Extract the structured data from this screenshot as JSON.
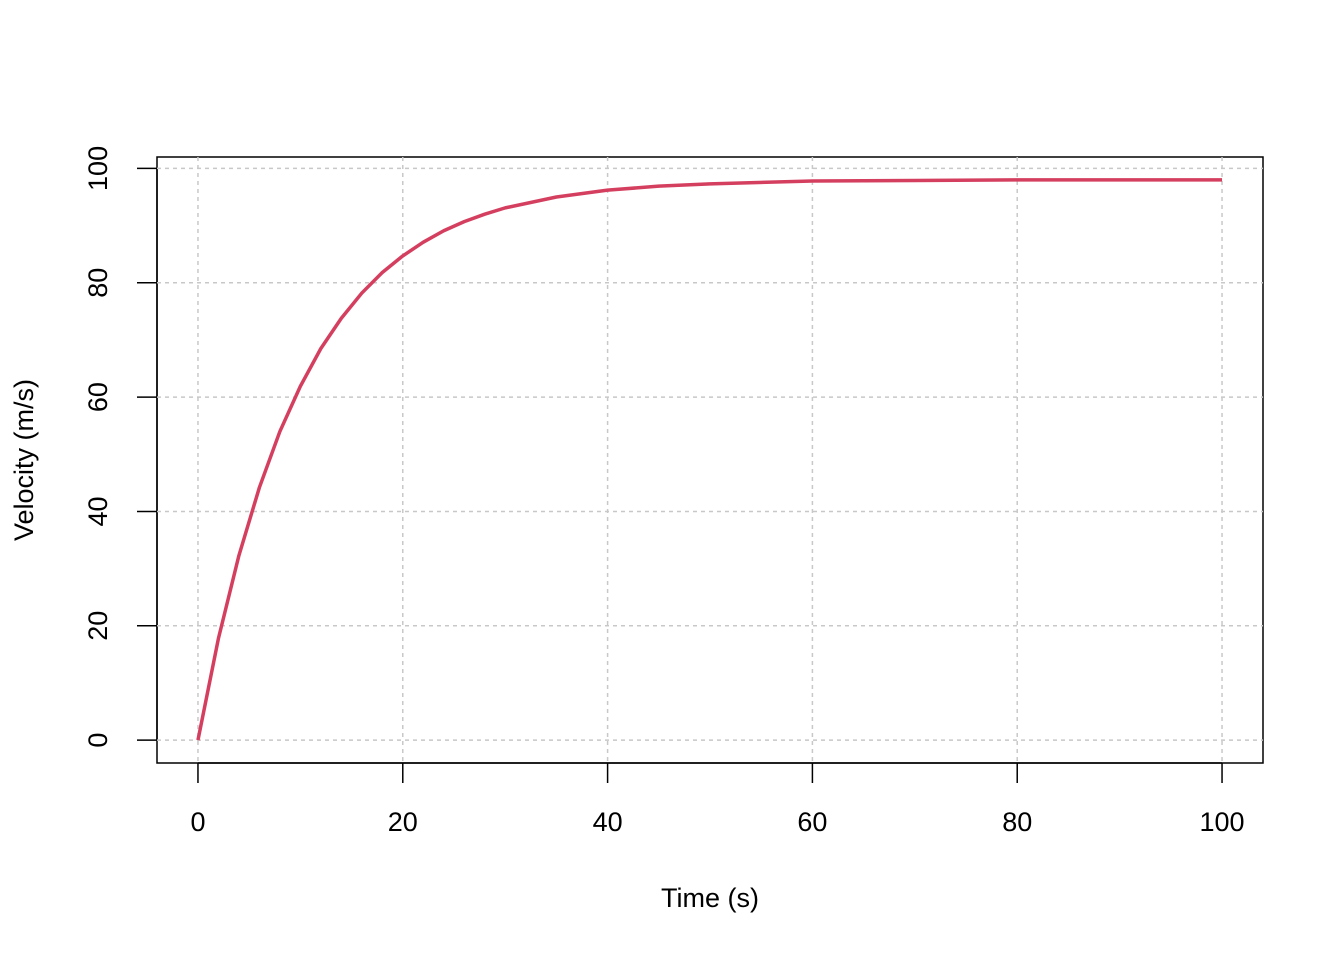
{
  "chart_data": {
    "type": "line",
    "x_label": "Time (s)",
    "y_label": "Velocity (m/s)",
    "x": [
      0,
      2,
      4,
      6,
      8,
      10,
      12,
      14,
      16,
      18,
      20,
      22,
      24,
      26,
      28,
      30,
      35,
      40,
      45,
      50,
      60,
      70,
      80,
      90,
      100
    ],
    "series": [
      {
        "color": "#d53f5f",
        "values": [
          0,
          17.8,
          32.3,
          44.2,
          54.0,
          61.9,
          68.5,
          73.8,
          78.2,
          81.8,
          84.7,
          87.1,
          89.1,
          90.7,
          92.0,
          93.1,
          95.0,
          96.2,
          96.9,
          97.3,
          97.8,
          97.9,
          98.0,
          98.0,
          98.0
        ]
      }
    ],
    "xlim": [
      -4,
      104
    ],
    "ylim": [
      -4,
      102
    ],
    "xticks": [
      0,
      20,
      40,
      60,
      80,
      100
    ],
    "yticks": [
      0,
      20,
      40,
      60,
      80,
      100
    ],
    "grid": true
  }
}
